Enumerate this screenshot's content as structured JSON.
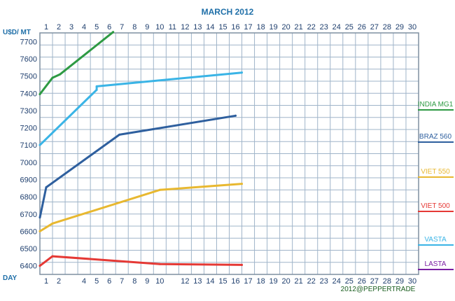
{
  "colors": {
    "grid": "#9fb4c9",
    "frame": "#7f8fa0",
    "title": "#1f6fa8",
    "axis_text": "#1f3f6e"
  },
  "chart_data": {
    "type": "line",
    "title": "MARCH 2012",
    "ylabel": "U$D/ MT",
    "xlabel": "DAY",
    "footer": "2012@PEPPERTRADE",
    "top_ticks": [
      "1",
      "2",
      "3",
      "4",
      "5",
      "6",
      "7",
      "8",
      "9",
      "10",
      "11",
      "12",
      "13",
      "14",
      "15",
      "16",
      "17",
      "18",
      "19",
      "20",
      "21",
      "22",
      "23",
      "24",
      "25",
      "26",
      "27",
      "28",
      "29",
      "30"
    ],
    "bottom_ticks": [
      "1",
      "2",
      "4",
      "5",
      "6",
      "7",
      "8",
      "9",
      "10",
      "12",
      "13",
      "14",
      "15",
      "16",
      "17",
      "18",
      "19",
      "20",
      "21",
      "22",
      "23",
      "24",
      "25",
      "26",
      "27",
      "28",
      "29",
      "30"
    ],
    "y_ticks": [
      "7700",
      "7600",
      "7500",
      "7400",
      "7300",
      "7200",
      "7100",
      "7000",
      "6900",
      "6800",
      "6700",
      "6600",
      "6500",
      "6400"
    ],
    "xlim": [
      0,
      30
    ],
    "ylim": [
      6350,
      7750
    ],
    "grid": true,
    "legend_position": "right",
    "series": [
      {
        "name": "INDIA MG1",
        "color": "#2e9a43",
        "x": [
          0,
          1,
          1.6,
          5.8
        ],
        "y": [
          7395,
          7490,
          7510,
          7755
        ]
      },
      {
        "name": "BRAZ 560",
        "color": "#2e5f9e",
        "x": [
          0,
          0.5,
          6.3,
          15.5
        ],
        "y": [
          6680,
          6855,
          7160,
          7270
        ]
      },
      {
        "name": "VIET 550",
        "color": "#e8b830",
        "x": [
          0,
          1,
          9.5,
          16
        ],
        "y": [
          6600,
          6645,
          6840,
          6875
        ]
      },
      {
        "name": "VIET 500",
        "color": "#e53935",
        "x": [
          0,
          1,
          9.5,
          16
        ],
        "y": [
          6400,
          6455,
          6410,
          6405
        ]
      },
      {
        "name": "VASTA",
        "color": "#3ab4e6",
        "x": [
          0,
          4.5,
          4.5,
          16
        ],
        "y": [
          7100,
          7420,
          7440,
          7520
        ]
      },
      {
        "name": "LASTA",
        "color": "#7b1fa2",
        "x": [],
        "y": []
      }
    ]
  }
}
